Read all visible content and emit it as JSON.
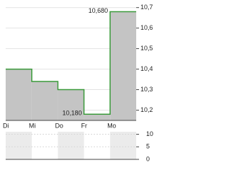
{
  "chart_data": [
    {
      "type": "step-area",
      "categories": [
        "Di",
        "Mi",
        "Do",
        "Fr",
        "Mo"
      ],
      "series": [
        {
          "color": "#3a9a3a",
          "fill": "#c4c4c4",
          "values": [
            10.4,
            10.34,
            10.3,
            10.18,
            10.68
          ],
          "value_labels": [
            null,
            null,
            null,
            "10,180",
            "10,680"
          ]
        }
      ],
      "ylim": [
        10.15,
        10.73
      ],
      "yticks": [
        {
          "value": 10.2,
          "label": "10,2"
        },
        {
          "value": 10.3,
          "label": "10,3"
        },
        {
          "value": 10.4,
          "label": "10,4"
        },
        {
          "value": 10.5,
          "label": "10,5"
        },
        {
          "value": 10.6,
          "label": "10,6"
        },
        {
          "value": 10.7,
          "label": "10,7"
        }
      ],
      "grid": true
    },
    {
      "type": "volume",
      "ylim": [
        0,
        11
      ],
      "yticks": [
        0,
        5,
        10
      ],
      "grid": true
    }
  ]
}
